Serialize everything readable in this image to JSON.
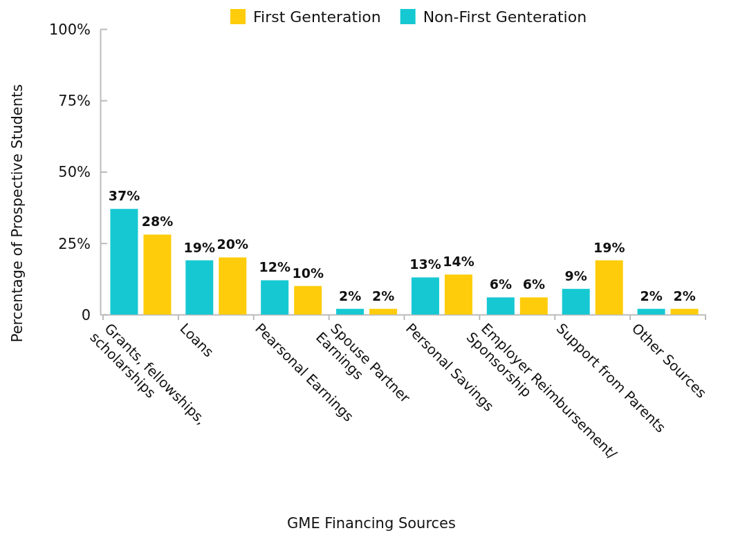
{
  "chart_data": {
    "type": "bar",
    "xlabel": "GME Financing Sources",
    "ylabel": "Percentage of Prospective Students",
    "categories": [
      "Grants, fellowships,\nscholarships",
      "Loans",
      "Pearsonal Earnings",
      "Spouse Partner\nEarnings",
      "Personal Savings",
      "Employer Reimbursement/\nSponsorship",
      "Support from Parents",
      "Other Sources"
    ],
    "series": [
      {
        "name": "Non-First Genteration",
        "color": "#16c8d2",
        "values": [
          37,
          19,
          12,
          2,
          13,
          6,
          9,
          2
        ],
        "value_labels": [
          "37%",
          "19%",
          "12%",
          "2%",
          "13%",
          "6%",
          "9%",
          "2%"
        ]
      },
      {
        "name": "First Genteration",
        "color": "#fecc0a",
        "values": [
          28,
          20,
          10,
          2,
          14,
          6,
          19,
          2
        ],
        "value_labels": [
          "28%",
          "20%",
          "10%",
          "2%",
          "14%",
          "6%",
          "19%",
          "2%"
        ]
      }
    ],
    "ylim": [
      0,
      100
    ],
    "yticks": [
      {
        "value": 0,
        "label": "0"
      },
      {
        "value": 25,
        "label": "25%"
      },
      {
        "value": 50,
        "label": "50%"
      },
      {
        "value": 75,
        "label": "75%"
      },
      {
        "value": 100,
        "label": "100%"
      }
    ],
    "legend": "top",
    "grid": false
  }
}
